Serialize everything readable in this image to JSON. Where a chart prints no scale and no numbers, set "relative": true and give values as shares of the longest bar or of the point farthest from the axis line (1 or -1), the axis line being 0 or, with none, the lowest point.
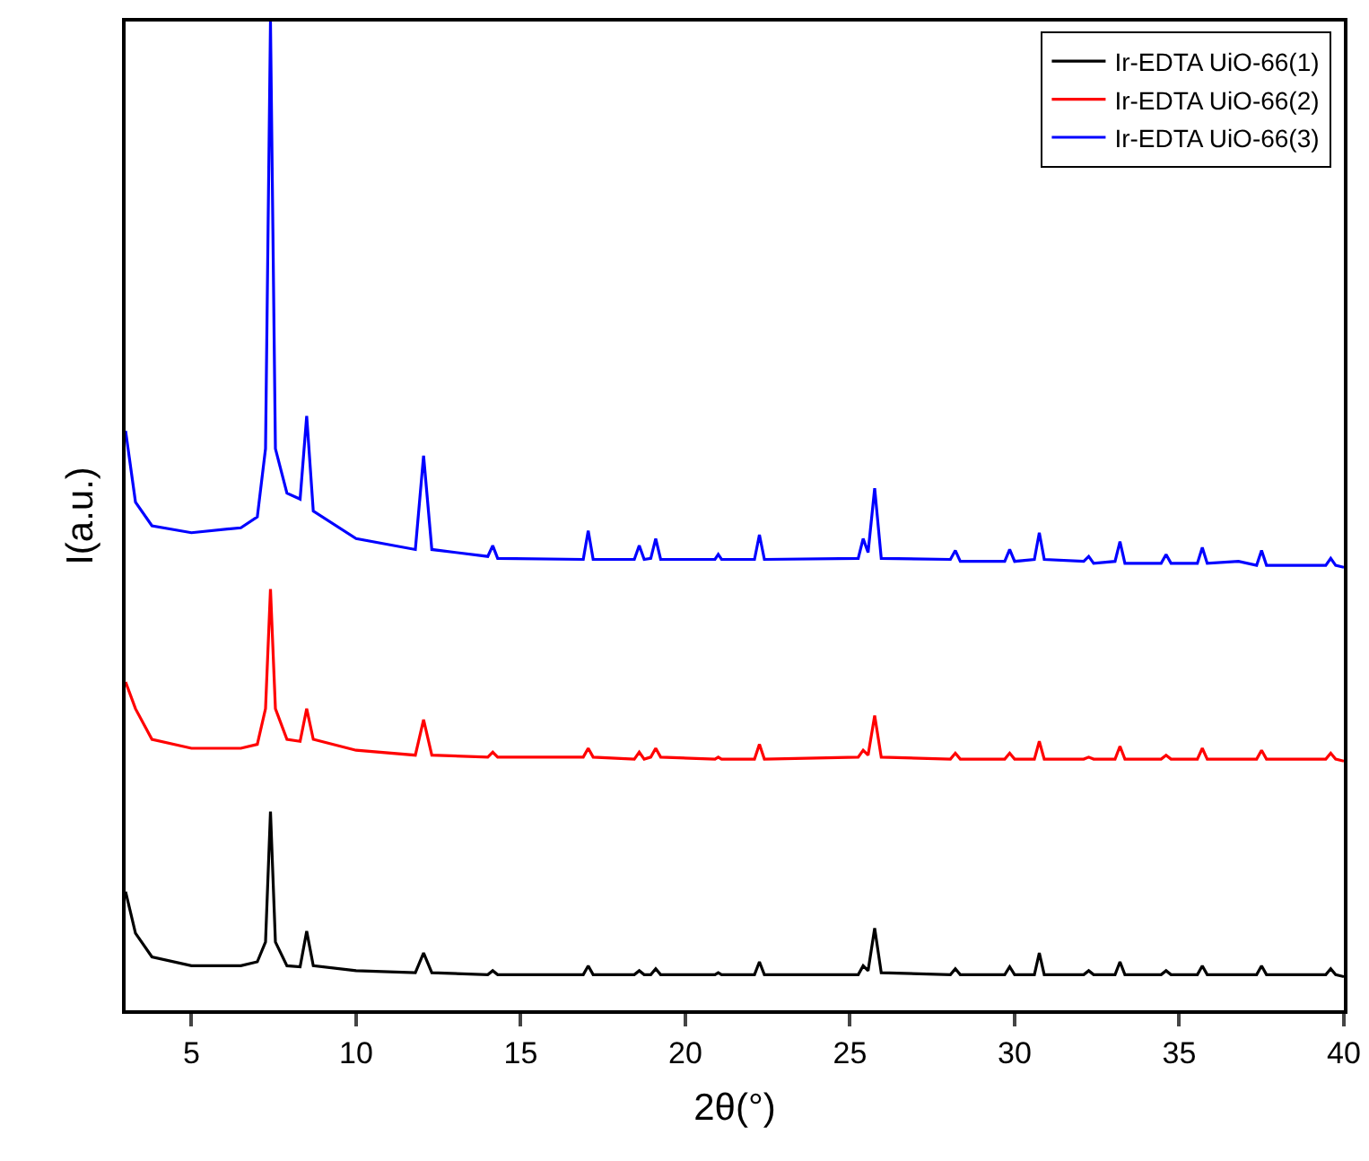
{
  "chart_data": {
    "type": "line",
    "xlabel": "2θ(°)",
    "ylabel": "I(a.u.)",
    "relative": true,
    "xlim": [
      3,
      40
    ],
    "xticks": [
      5,
      10,
      15,
      20,
      25,
      30,
      35,
      40
    ],
    "grid": false,
    "legend": "top right",
    "marker": "none",
    "line_style": "solid",
    "x": [
      3,
      3.3,
      3.8,
      5,
      6.5,
      7.0,
      7.25,
      7.4,
      7.55,
      7.9,
      8.3,
      8.5,
      8.7,
      10,
      11.8,
      12.05,
      12.3,
      14.0,
      14.15,
      14.3,
      16.9,
      17.05,
      17.2,
      18.45,
      18.6,
      18.75,
      18.95,
      19.1,
      19.25,
      20.9,
      21.0,
      21.1,
      22.1,
      22.25,
      22.4,
      25.25,
      25.4,
      25.55,
      25.75,
      25.95,
      28.05,
      28.2,
      28.35,
      29.7,
      29.85,
      30.0,
      30.6,
      30.75,
      30.9,
      32.1,
      32.25,
      32.4,
      33.05,
      33.2,
      33.35,
      34.45,
      34.6,
      34.75,
      35.55,
      35.7,
      35.85,
      36.8,
      37.35,
      37.5,
      37.65,
      39.45,
      39.6,
      39.75,
      40
    ],
    "series": [
      {
        "name": "Ir-EDTA UiO-66(1)",
        "color": "#000000",
        "values": [
          0.12,
          0.078,
          0.054,
          0.045,
          0.045,
          0.049,
          0.069,
          0.201,
          0.069,
          0.045,
          0.044,
          0.08,
          0.045,
          0.04,
          0.038,
          0.058,
          0.038,
          0.036,
          0.04,
          0.036,
          0.036,
          0.045,
          0.036,
          0.036,
          0.04,
          0.036,
          0.036,
          0.042,
          0.036,
          0.036,
          0.038,
          0.036,
          0.036,
          0.049,
          0.036,
          0.036,
          0.045,
          0.04,
          0.083,
          0.038,
          0.036,
          0.042,
          0.036,
          0.036,
          0.044,
          0.036,
          0.036,
          0.058,
          0.036,
          0.036,
          0.04,
          0.036,
          0.036,
          0.049,
          0.036,
          0.036,
          0.04,
          0.036,
          0.036,
          0.045,
          0.036,
          0.036,
          0.036,
          0.045,
          0.036,
          0.036,
          0.042,
          0.036,
          0.034
        ]
      },
      {
        "name": "Ir-EDTA UiO-66(2)",
        "color": "#ff0000",
        "values": [
          0.332,
          0.305,
          0.274,
          0.265,
          0.265,
          0.269,
          0.305,
          0.426,
          0.305,
          0.274,
          0.272,
          0.305,
          0.274,
          0.263,
          0.258,
          0.294,
          0.258,
          0.256,
          0.261,
          0.256,
          0.256,
          0.265,
          0.256,
          0.254,
          0.261,
          0.254,
          0.256,
          0.265,
          0.256,
          0.254,
          0.256,
          0.254,
          0.254,
          0.269,
          0.254,
          0.256,
          0.263,
          0.258,
          0.298,
          0.256,
          0.254,
          0.26,
          0.254,
          0.254,
          0.26,
          0.254,
          0.254,
          0.272,
          0.254,
          0.254,
          0.256,
          0.254,
          0.254,
          0.267,
          0.254,
          0.254,
          0.258,
          0.254,
          0.254,
          0.265,
          0.254,
          0.254,
          0.254,
          0.263,
          0.254,
          0.254,
          0.26,
          0.254,
          0.252
        ]
      },
      {
        "name": "Ir-EDTA UiO-66(3)",
        "color": "#0000ff",
        "values": [
          0.586,
          0.514,
          0.49,
          0.483,
          0.488,
          0.499,
          0.568,
          1.0,
          0.568,
          0.523,
          0.517,
          0.601,
          0.505,
          0.477,
          0.466,
          0.561,
          0.466,
          0.459,
          0.47,
          0.457,
          0.456,
          0.485,
          0.456,
          0.456,
          0.47,
          0.456,
          0.457,
          0.477,
          0.456,
          0.456,
          0.461,
          0.456,
          0.456,
          0.481,
          0.456,
          0.457,
          0.477,
          0.463,
          0.528,
          0.457,
          0.456,
          0.465,
          0.454,
          0.454,
          0.466,
          0.454,
          0.456,
          0.483,
          0.456,
          0.454,
          0.459,
          0.452,
          0.454,
          0.474,
          0.452,
          0.452,
          0.461,
          0.452,
          0.452,
          0.468,
          0.452,
          0.454,
          0.45,
          0.465,
          0.45,
          0.45,
          0.457,
          0.45,
          0.448
        ]
      }
    ]
  }
}
